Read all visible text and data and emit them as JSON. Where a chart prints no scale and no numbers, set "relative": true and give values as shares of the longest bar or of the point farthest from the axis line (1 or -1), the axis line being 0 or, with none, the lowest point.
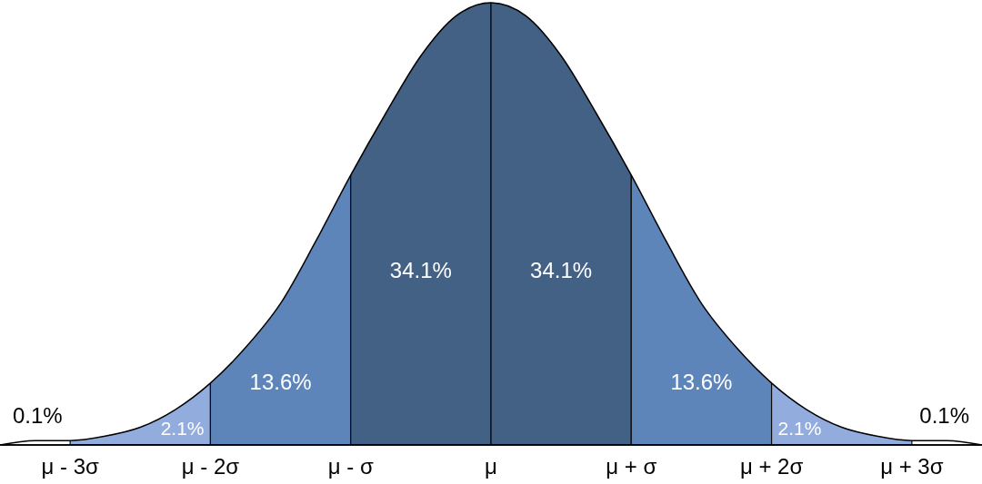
{
  "chart_data": {
    "type": "area",
    "relative": true,
    "categories": [
      null,
      null,
      "μ - 3σ",
      null,
      null,
      null,
      "μ - 2σ",
      null,
      null,
      null,
      "μ - σ",
      null,
      null,
      null,
      "μ",
      null,
      null,
      null,
      "μ + σ",
      null,
      null,
      null,
      "μ + 2σ",
      null,
      null,
      null,
      "μ + 3σ",
      null,
      null
    ],
    "series": [
      {
        "color": "#000000",
        "values": [
          0.0,
          0.01,
          0.01,
          0.02,
          0.04,
          0.08,
          0.14,
          0.22,
          0.32,
          0.46,
          0.61,
          0.75,
          0.88,
          0.97,
          1,
          0.97,
          0.88,
          0.75,
          0.61,
          0.46,
          0.32,
          0.22,
          0.14,
          0.08,
          0.04,
          0.02,
          0.01,
          0.01,
          0.0
        ]
      }
    ],
    "bands": [
      {
        "axis": "x",
        "from": "μ - 3σ",
        "to": "μ - 2σ",
        "label": "2.1%",
        "color": "#8eaadc"
      },
      {
        "axis": "x",
        "from": "μ - 2σ",
        "to": "μ - σ",
        "label": "13.6%",
        "color": "#5880b8"
      },
      {
        "axis": "x",
        "from": "μ - σ",
        "to": "μ",
        "label": "34.1%",
        "color": "#3c5a80"
      },
      {
        "axis": "x",
        "from": "μ",
        "to": "μ + σ",
        "label": "34.1%",
        "color": "#3c5a80"
      },
      {
        "axis": "x",
        "from": "μ + σ",
        "to": "μ + 2σ",
        "label": "13.6%",
        "color": "#5880b8"
      },
      {
        "axis": "x",
        "from": "μ + 2σ",
        "to": "μ + 3σ",
        "label": "2.1%",
        "color": "#8eaadc"
      }
    ],
    "annotations": [
      "0.1%",
      "0.1%"
    ]
  }
}
